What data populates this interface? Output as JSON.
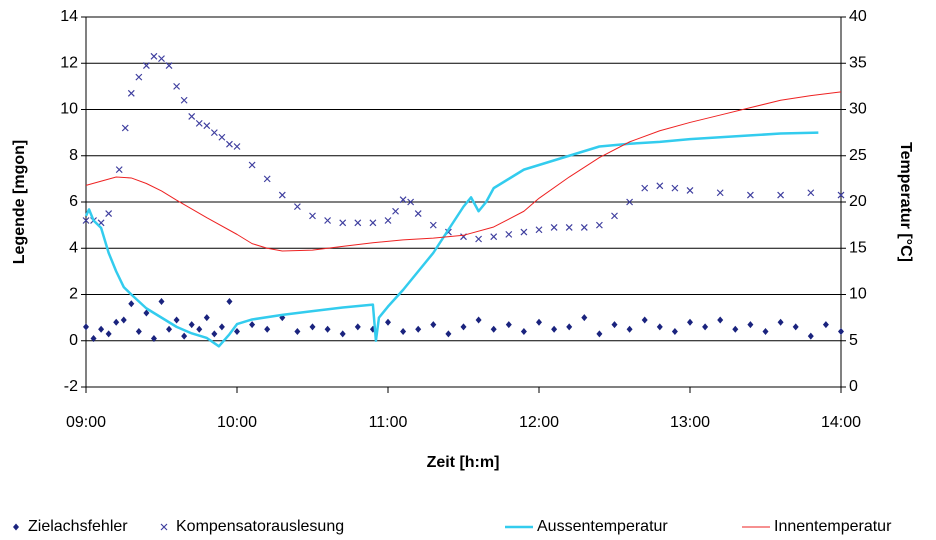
{
  "chart_data": {
    "type": "combo",
    "xlabel": "Zeit [h:m]",
    "ylabel": "Legende [mgon]",
    "y2label": "Temperatur [°C]",
    "xlim": [
      9,
      14
    ],
    "xticks": [
      {
        "value": 9,
        "label": "09:00"
      },
      {
        "value": 10,
        "label": "10:00"
      },
      {
        "value": 11,
        "label": "11:00"
      },
      {
        "value": 12,
        "label": "12:00"
      },
      {
        "value": 13,
        "label": "13:00"
      },
      {
        "value": 14,
        "label": "14:00"
      }
    ],
    "ylim": [
      -2,
      14
    ],
    "yticks": [
      -2,
      0,
      2,
      4,
      6,
      8,
      10,
      12,
      14
    ],
    "y2lim": [
      0,
      40
    ],
    "y2ticks": [
      0,
      5,
      10,
      15,
      20,
      25,
      30,
      35,
      40
    ],
    "grid": true,
    "legend": "bottom",
    "series": [
      {
        "name": "Zielachsfehler",
        "type": "scatter",
        "marker": "diamond",
        "color": "#1a237e",
        "x": [
          9.0,
          9.05,
          9.1,
          9.15,
          9.2,
          9.25,
          9.3,
          9.35,
          9.4,
          9.45,
          9.5,
          9.55,
          9.6,
          9.65,
          9.7,
          9.75,
          9.8,
          9.85,
          9.9,
          9.95,
          10.0,
          10.1,
          10.2,
          10.3,
          10.4,
          10.5,
          10.6,
          10.7,
          10.8,
          10.9,
          11.0,
          11.1,
          11.2,
          11.3,
          11.4,
          11.5,
          11.6,
          11.7,
          11.8,
          11.9,
          12.0,
          12.1,
          12.2,
          12.3,
          12.4,
          12.5,
          12.6,
          12.7,
          12.8,
          12.9,
          13.0,
          13.1,
          13.2,
          13.3,
          13.4,
          13.5,
          13.6,
          13.7,
          13.8,
          13.9,
          14.0
        ],
        "values": [
          0.6,
          0.1,
          0.5,
          0.3,
          0.8,
          0.9,
          1.6,
          0.4,
          1.2,
          0.1,
          1.7,
          0.5,
          0.9,
          0.2,
          0.7,
          0.5,
          1.0,
          0.3,
          0.6,
          1.7,
          0.4,
          0.7,
          0.5,
          1.0,
          0.4,
          0.6,
          0.5,
          0.3,
          0.6,
          0.5,
          0.8,
          0.4,
          0.5,
          0.7,
          0.3,
          0.6,
          0.9,
          0.5,
          0.7,
          0.4,
          0.8,
          0.5,
          0.6,
          1.0,
          0.3,
          0.7,
          0.5,
          0.9,
          0.6,
          0.4,
          0.8,
          0.6,
          0.9,
          0.5,
          0.7,
          0.4,
          0.8,
          0.6,
          0.2,
          0.7,
          0.4
        ]
      },
      {
        "name": "Kompensatorauslesung",
        "type": "scatter",
        "marker": "x",
        "color": "#3f3f9f",
        "x": [
          9.0,
          9.05,
          9.1,
          9.15,
          9.22,
          9.26,
          9.3,
          9.35,
          9.4,
          9.45,
          9.5,
          9.55,
          9.6,
          9.65,
          9.7,
          9.75,
          9.8,
          9.85,
          9.9,
          9.95,
          10.0,
          10.1,
          10.2,
          10.3,
          10.4,
          10.5,
          10.6,
          10.7,
          10.8,
          10.9,
          11.0,
          11.05,
          11.1,
          11.15,
          11.2,
          11.3,
          11.4,
          11.5,
          11.6,
          11.7,
          11.8,
          11.9,
          12.0,
          12.1,
          12.2,
          12.3,
          12.4,
          12.5,
          12.6,
          12.7,
          12.8,
          12.9,
          13.0,
          13.2,
          13.4,
          13.6,
          13.8,
          14.0
        ],
        "values": [
          5.2,
          5.2,
          5.1,
          5.5,
          7.4,
          9.2,
          10.7,
          11.4,
          11.9,
          12.3,
          12.2,
          11.9,
          11.0,
          10.4,
          9.7,
          9.4,
          9.3,
          9.0,
          8.8,
          8.5,
          8.4,
          7.6,
          7.0,
          6.3,
          5.8,
          5.4,
          5.2,
          5.1,
          5.1,
          5.1,
          5.2,
          5.6,
          6.1,
          6.0,
          5.5,
          5.0,
          4.7,
          4.5,
          4.4,
          4.5,
          4.6,
          4.7,
          4.8,
          4.9,
          4.9,
          4.9,
          5.0,
          5.4,
          6.0,
          6.6,
          6.7,
          6.6,
          6.5,
          6.4,
          6.3,
          6.3,
          6.4,
          6.3
        ]
      },
      {
        "name": "Aussentemperatur",
        "type": "line",
        "axis": "y2",
        "color": "#33ccee",
        "x": [
          9.0,
          9.02,
          9.05,
          9.1,
          9.15,
          9.2,
          9.25,
          9.3,
          9.4,
          9.5,
          9.6,
          9.7,
          9.8,
          9.88,
          9.95,
          10.0,
          10.1,
          10.3,
          10.5,
          10.7,
          10.9,
          10.92,
          10.94,
          11.0,
          11.1,
          11.2,
          11.3,
          11.4,
          11.5,
          11.55,
          11.6,
          11.65,
          11.7,
          11.8,
          11.9,
          12.0,
          12.2,
          12.4,
          12.6,
          12.8,
          13.0,
          13.2,
          13.4,
          13.6,
          13.85
        ],
        "values": [
          18.5,
          19.2,
          18.0,
          17.2,
          14.5,
          12.5,
          10.8,
          10.0,
          8.5,
          7.5,
          6.5,
          5.8,
          5.3,
          4.4,
          5.7,
          6.8,
          7.3,
          7.8,
          8.2,
          8.6,
          8.9,
          5.0,
          7.5,
          8.7,
          10.5,
          12.5,
          14.5,
          17.0,
          19.5,
          20.5,
          19.0,
          20.0,
          21.5,
          22.5,
          23.5,
          24.0,
          25.0,
          26.0,
          26.3,
          26.5,
          26.8,
          27.0,
          27.2,
          27.4,
          27.5
        ]
      },
      {
        "name": "Innentemperatur",
        "type": "line",
        "axis": "y2",
        "color": "#ee2222",
        "x": [
          9.0,
          9.2,
          9.3,
          9.4,
          9.5,
          9.6,
          9.8,
          10.0,
          10.1,
          10.2,
          10.3,
          10.5,
          10.7,
          10.9,
          11.1,
          11.3,
          11.5,
          11.7,
          11.9,
          12.0,
          12.2,
          12.4,
          12.6,
          12.8,
          13.0,
          13.2,
          13.4,
          13.6,
          13.8,
          14.0
        ],
        "values": [
          21.8,
          22.7,
          22.6,
          22.0,
          21.2,
          20.2,
          18.3,
          16.5,
          15.5,
          15.0,
          14.7,
          14.8,
          15.2,
          15.6,
          15.9,
          16.1,
          16.4,
          17.3,
          19.0,
          20.4,
          22.7,
          24.8,
          26.5,
          27.7,
          28.6,
          29.4,
          30.2,
          31.0,
          31.5,
          31.9
        ]
      }
    ]
  }
}
